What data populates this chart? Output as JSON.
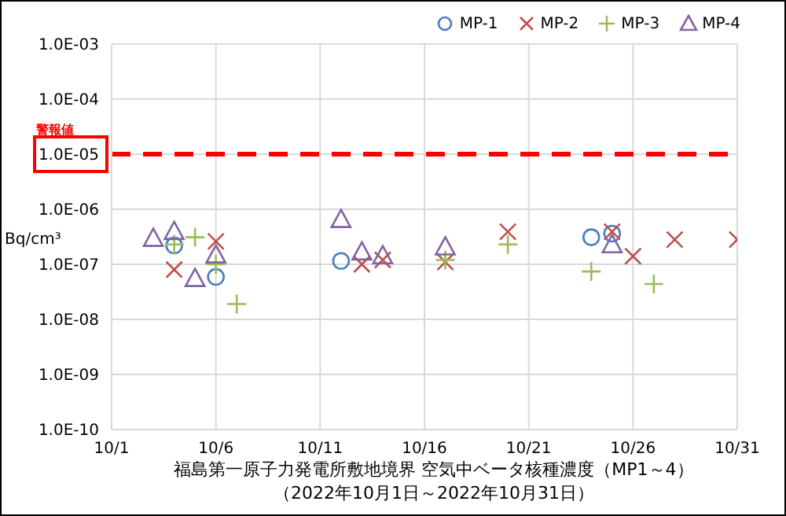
{
  "chart_data": {
    "type": "scatter",
    "xlabel": "福島第一原子力発電所敷地境界  空気中ベータ核種濃度（MP1～4）",
    "annotations": [
      "（2022年10月1日～2022年10月31日）"
    ],
    "ylabel": "Bq/cm³",
    "xlim": [
      "--10-01",
      "--10-31"
    ],
    "xticks": [
      {
        "value": "--10-01",
        "label": "10/1"
      },
      {
        "value": "--10-06",
        "label": "10/6"
      },
      {
        "value": "--10-11",
        "label": "10/11"
      },
      {
        "value": "--10-16",
        "label": "10/16"
      },
      {
        "value": "--10-21",
        "label": "10/21"
      },
      {
        "value": "--10-26",
        "label": "10/26"
      },
      {
        "value": "--10-31",
        "label": "10/31"
      }
    ],
    "ylim": [
      1e-10,
      0.001
    ],
    "yticks": [
      {
        "value": 1e-10,
        "label": "1.0E-10"
      },
      {
        "value": 1e-09,
        "label": "1.0E-09"
      },
      {
        "value": 1e-08,
        "label": "1.0E-08"
      },
      {
        "value": 1e-07,
        "label": "1.0E-07"
      },
      {
        "value": 1e-06,
        "label": "1.0E-06"
      },
      {
        "value": 1e-05,
        "label": "1.0E-05"
      },
      {
        "value": 0.0001,
        "label": "1.0E-04"
      },
      {
        "value": 0.001,
        "label": "1.0E-03"
      }
    ],
    "log": "y",
    "grid": true,
    "legend": "top right",
    "ref_lines": [
      {
        "axis": "y",
        "value": 1e-05,
        "label": "警報値",
        "color": "#ff0000",
        "line_style": "dashed"
      }
    ],
    "series": [
      {
        "name": "MP-1",
        "color": "#4a7ebb",
        "marker": "circle",
        "x": [
          "--10-04",
          "--10-06",
          "--10-12",
          "--10-24",
          "--10-25"
        ],
        "values": [
          2.2e-07,
          5.9e-08,
          1.15e-07,
          3.1e-07,
          3.6e-07
        ]
      },
      {
        "name": "MP-2",
        "color": "#c0504d",
        "marker": "cross",
        "x": [
          "--10-04",
          "--10-06",
          "--10-13",
          "--10-14",
          "--10-17",
          "--10-20",
          "--10-25",
          "--10-26",
          "--10-28",
          "--10-31"
        ],
        "values": [
          8e-08,
          2.6e-07,
          1e-07,
          1.2e-07,
          1.1e-07,
          3.9e-07,
          3.9e-07,
          1.4e-07,
          2.8e-07,
          2.8e-07
        ]
      },
      {
        "name": "MP-3",
        "color": "#9bbb59",
        "marker": "plus",
        "x": [
          "--10-04",
          "--10-05",
          "--10-06",
          "--10-07",
          "--10-17",
          "--10-20",
          "--10-24",
          "--10-27"
        ],
        "values": [
          2.3e-07,
          3.1e-07,
          1e-07,
          1.9e-08,
          1.2e-07,
          2.3e-07,
          7.4e-08,
          4.4e-08
        ]
      },
      {
        "name": "MP-4",
        "color": "#8064a2",
        "marker": "triangle",
        "x": [
          "--10-03",
          "--10-04",
          "--10-05",
          "--10-06",
          "--10-12",
          "--10-13",
          "--10-14",
          "--10-17",
          "--10-25"
        ],
        "values": [
          3e-07,
          4e-07,
          5.6e-08,
          1.5e-07,
          6.6e-07,
          1.7e-07,
          1.45e-07,
          2.1e-07,
          2.3e-07
        ]
      }
    ]
  }
}
